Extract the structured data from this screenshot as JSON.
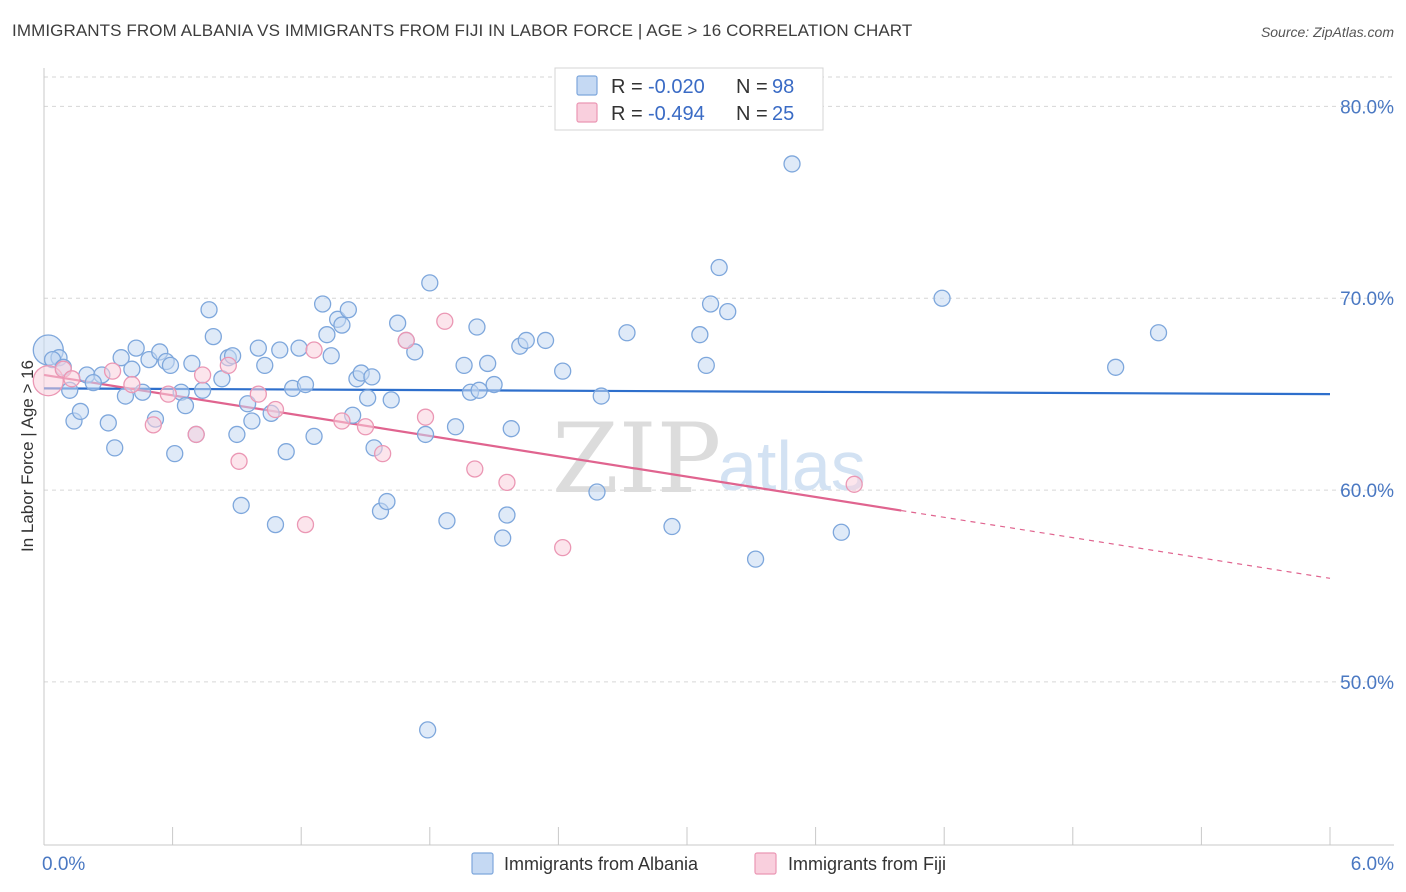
{
  "header": {
    "title": "IMMIGRANTS FROM ALBANIA VS IMMIGRANTS FROM FIJI IN LABOR FORCE | AGE > 16 CORRELATION CHART",
    "source": "Source: ZipAtlas.com"
  },
  "watermark": {
    "zip": "ZIP",
    "atlas": "atlas"
  },
  "colors": {
    "albania_fill": "#c5d9f3",
    "albania_stroke": "#7ea7dc",
    "albania_line": "#2e6fcc",
    "fiji_fill": "#f9cfdd",
    "fiji_stroke": "#eb97b4",
    "fiji_line": "#e0648f",
    "grid": "#d6d6d6",
    "tick_label": "#4a78c2"
  },
  "chart_data": {
    "type": "scatter",
    "title": "IMMIGRANTS FROM ALBANIA VS IMMIGRANTS FROM FIJI IN LABOR FORCE | AGE > 16 CORRELATION CHART",
    "xlabel": "",
    "ylabel": "In Labor Force | Age > 16",
    "xlim": [
      0,
      6
    ],
    "ylim": [
      41.5,
      82
    ],
    "x_tick_labels": [
      {
        "value": 0,
        "label": "0.0%"
      },
      {
        "value": 6,
        "label": "6.0%"
      }
    ],
    "y_ticks": [
      {
        "value": 50,
        "label": "50.0%"
      },
      {
        "value": 60,
        "label": "60.0%"
      },
      {
        "value": 70,
        "label": "70.0%"
      },
      {
        "value": 80,
        "label": "80.0%"
      }
    ],
    "grid": "horizontal dashed",
    "legend_position": "top-center",
    "stats": [
      {
        "r_label": "R = ",
        "r": "-0.020",
        "n_label": "N = ",
        "n": "98"
      },
      {
        "r_label": "R = ",
        "r": "-0.494",
        "n_label": "N = ",
        "n": "25"
      }
    ],
    "series": [
      {
        "name": "Immigrants from Albania",
        "trend": {
          "x0": 0.0,
          "y0": 65.3,
          "x1": 6.0,
          "y1": 65.0,
          "solid_until": 6.0
        },
        "points": [
          [
            0.02,
            67.3
          ],
          [
            0.07,
            66.9
          ],
          [
            0.12,
            65.2
          ],
          [
            0.14,
            63.6
          ],
          [
            0.17,
            64.1
          ],
          [
            0.2,
            66.0
          ],
          [
            0.27,
            66.0
          ],
          [
            0.3,
            63.5
          ],
          [
            0.33,
            62.2
          ],
          [
            0.36,
            66.9
          ],
          [
            0.38,
            64.9
          ],
          [
            0.41,
            66.3
          ],
          [
            0.43,
            67.4
          ],
          [
            0.46,
            65.1
          ],
          [
            0.49,
            66.8
          ],
          [
            0.52,
            63.7
          ],
          [
            0.54,
            67.2
          ],
          [
            0.57,
            66.7
          ],
          [
            0.59,
            66.5
          ],
          [
            0.61,
            61.9
          ],
          [
            0.64,
            65.1
          ],
          [
            0.66,
            64.4
          ],
          [
            0.69,
            66.6
          ],
          [
            0.71,
            62.9
          ],
          [
            0.74,
            65.2
          ],
          [
            0.77,
            69.4
          ],
          [
            0.79,
            68.0
          ],
          [
            0.83,
            65.8
          ],
          [
            0.86,
            66.9
          ],
          [
            0.88,
            67.0
          ],
          [
            0.9,
            62.9
          ],
          [
            0.92,
            59.2
          ],
          [
            0.95,
            64.5
          ],
          [
            0.97,
            63.6
          ],
          [
            1.0,
            67.4
          ],
          [
            1.03,
            66.5
          ],
          [
            1.08,
            58.2
          ],
          [
            1.1,
            67.3
          ],
          [
            1.13,
            62.0
          ],
          [
            1.16,
            65.3
          ],
          [
            1.19,
            67.4
          ],
          [
            1.22,
            65.5
          ],
          [
            1.26,
            62.8
          ],
          [
            1.3,
            69.7
          ],
          [
            1.32,
            68.1
          ],
          [
            1.34,
            67.0
          ],
          [
            1.37,
            68.9
          ],
          [
            1.39,
            68.6
          ],
          [
            1.42,
            69.4
          ],
          [
            1.44,
            63.9
          ],
          [
            1.46,
            65.8
          ],
          [
            1.48,
            66.1
          ],
          [
            1.51,
            64.8
          ],
          [
            1.54,
            62.2
          ],
          [
            1.57,
            58.9
          ],
          [
            1.6,
            59.4
          ],
          [
            1.62,
            64.7
          ],
          [
            1.65,
            68.7
          ],
          [
            1.69,
            67.8
          ],
          [
            1.73,
            67.2
          ],
          [
            1.78,
            62.9
          ],
          [
            1.8,
            70.8
          ],
          [
            1.88,
            58.4
          ],
          [
            1.92,
            63.3
          ],
          [
            1.96,
            66.5
          ],
          [
            1.99,
            65.1
          ],
          [
            2.02,
            68.5
          ],
          [
            2.07,
            66.6
          ],
          [
            2.1,
            65.5
          ],
          [
            2.14,
            57.5
          ],
          [
            2.16,
            58.7
          ],
          [
            2.18,
            63.2
          ],
          [
            2.22,
            67.5
          ],
          [
            2.25,
            67.8
          ],
          [
            2.34,
            67.8
          ],
          [
            2.42,
            66.2
          ],
          [
            2.58,
            59.9
          ],
          [
            2.6,
            64.9
          ],
          [
            2.72,
            68.2
          ],
          [
            2.93,
            58.1
          ],
          [
            3.06,
            68.1
          ],
          [
            3.09,
            66.5
          ],
          [
            3.11,
            69.7
          ],
          [
            3.15,
            71.6
          ],
          [
            3.19,
            69.3
          ],
          [
            3.32,
            56.4
          ],
          [
            3.72,
            57.8
          ],
          [
            3.49,
            77.0
          ],
          [
            4.19,
            70.0
          ],
          [
            5.0,
            66.4
          ],
          [
            5.2,
            68.2
          ],
          [
            1.79,
            47.5
          ],
          [
            0.04,
            66.8
          ],
          [
            0.09,
            66.4
          ],
          [
            0.23,
            65.6
          ],
          [
            1.06,
            64.0
          ],
          [
            1.53,
            65.9
          ],
          [
            2.03,
            65.2
          ]
        ]
      },
      {
        "name": "Immigrants from Fiji",
        "trend": {
          "x0": 0.0,
          "y0": 66.0,
          "x1": 6.0,
          "y1": 55.4,
          "solid_until": 4.0
        },
        "points": [
          [
            0.02,
            65.7
          ],
          [
            0.09,
            66.3
          ],
          [
            0.13,
            65.8
          ],
          [
            0.32,
            66.2
          ],
          [
            0.41,
            65.5
          ],
          [
            0.51,
            63.4
          ],
          [
            0.58,
            65.0
          ],
          [
            0.71,
            62.9
          ],
          [
            0.74,
            66.0
          ],
          [
            0.86,
            66.5
          ],
          [
            0.91,
            61.5
          ],
          [
            1.0,
            65.0
          ],
          [
            1.08,
            64.2
          ],
          [
            1.22,
            58.2
          ],
          [
            1.26,
            67.3
          ],
          [
            1.39,
            63.6
          ],
          [
            1.5,
            63.3
          ],
          [
            1.58,
            61.9
          ],
          [
            1.69,
            67.8
          ],
          [
            1.78,
            63.8
          ],
          [
            1.87,
            68.8
          ],
          [
            2.01,
            61.1
          ],
          [
            2.16,
            60.4
          ],
          [
            2.42,
            57.0
          ],
          [
            3.78,
            60.3
          ]
        ]
      }
    ]
  }
}
